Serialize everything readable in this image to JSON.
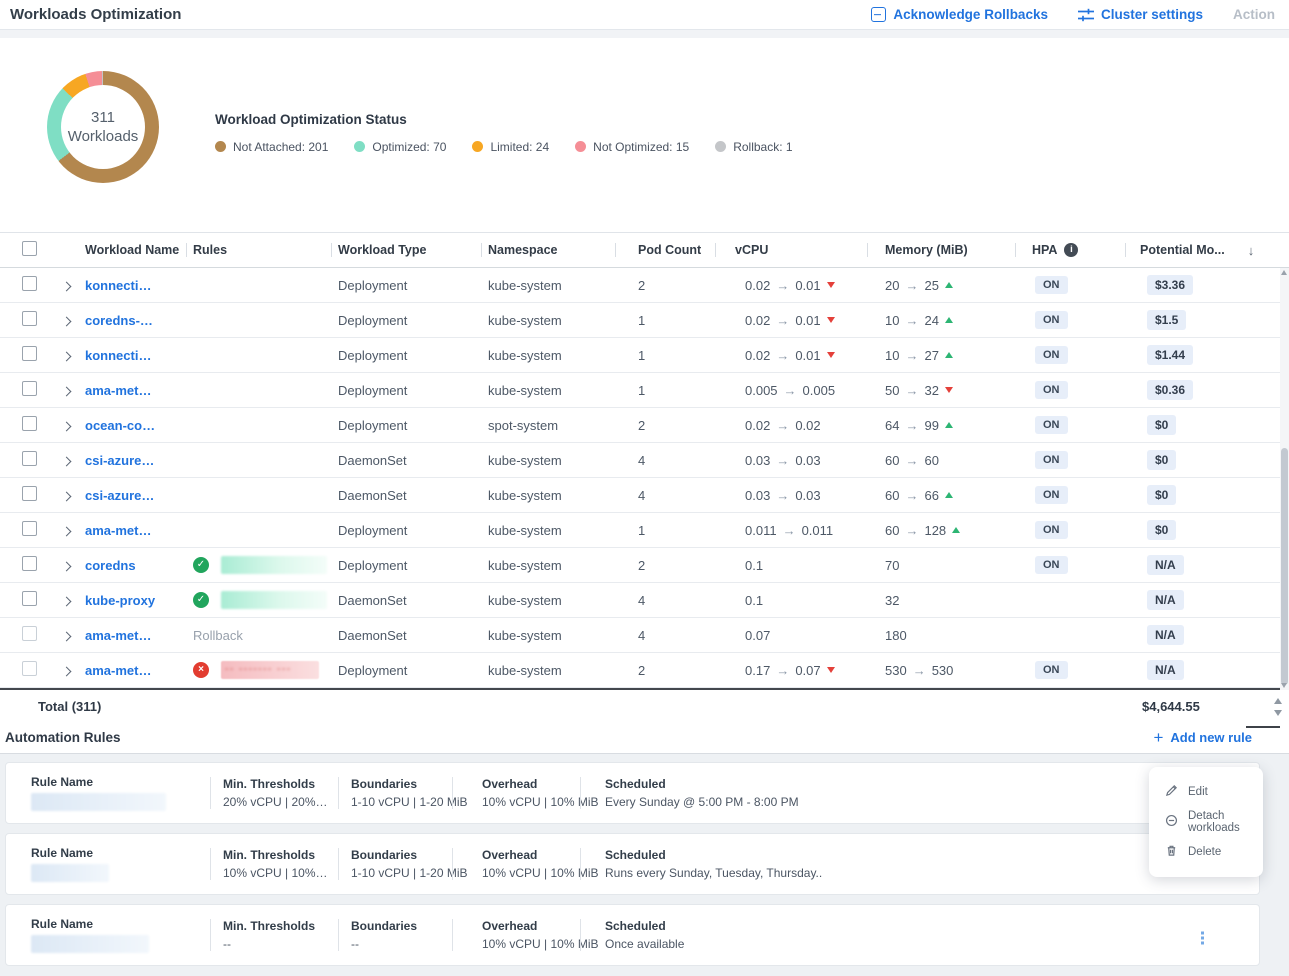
{
  "header": {
    "title": "Workloads Optimization",
    "actions": [
      {
        "label": "Acknowledge Rollbacks",
        "icon": "acknowledge-icon",
        "enabled": true
      },
      {
        "label": "Cluster settings",
        "icon": "sliders-icon",
        "enabled": true
      },
      {
        "label": "Action",
        "icon": "none",
        "enabled": false
      }
    ]
  },
  "status_card": {
    "title": "Workload Optimization Status",
    "center_value": "311",
    "center_label": "Workloads",
    "chart_data": {
      "type": "pie",
      "title": "Workload Optimization Status",
      "total": 311,
      "segments": [
        {
          "label": "Not Attached",
          "value": 201,
          "color": "#b3874e"
        },
        {
          "label": "Optimized",
          "value": 70,
          "color": "#7fdec4"
        },
        {
          "label": "Limited",
          "value": 24,
          "color": "#f7a723"
        },
        {
          "label": "Not Optimized",
          "value": 15,
          "color": "#f58e96"
        },
        {
          "label": "Rollback",
          "value": 1,
          "color": "#c4c6c9"
        }
      ]
    }
  },
  "table": {
    "columns": [
      "Workload Name",
      "Rules",
      "Workload Type",
      "Namespace",
      "Pod Count",
      "vCPU",
      "Memory (MiB)",
      "HPA",
      "Potential Mo..."
    ],
    "sort_column": "Potential Mo...",
    "rows": [
      {
        "name": "konnecti…",
        "rule": {
          "kind": "none"
        },
        "type": "Deployment",
        "namespace": "kube-system",
        "pods": "2",
        "vcpu": {
          "from": "0.02",
          "to": "0.01",
          "trend": "down"
        },
        "memory": {
          "from": "20",
          "to": "25",
          "trend": "up"
        },
        "hpa": "ON",
        "potential": "$3.36",
        "muted": false
      },
      {
        "name": "coredns-…",
        "rule": {
          "kind": "none"
        },
        "type": "Deployment",
        "namespace": "kube-system",
        "pods": "1",
        "vcpu": {
          "from": "0.02",
          "to": "0.01",
          "trend": "down"
        },
        "memory": {
          "from": "10",
          "to": "24",
          "trend": "up"
        },
        "hpa": "ON",
        "potential": "$1.5",
        "muted": false
      },
      {
        "name": "konnecti…",
        "rule": {
          "kind": "none"
        },
        "type": "Deployment",
        "namespace": "kube-system",
        "pods": "1",
        "vcpu": {
          "from": "0.02",
          "to": "0.01",
          "trend": "down"
        },
        "memory": {
          "from": "10",
          "to": "27",
          "trend": "up"
        },
        "hpa": "ON",
        "potential": "$1.44",
        "muted": false
      },
      {
        "name": "ama-met…",
        "rule": {
          "kind": "none"
        },
        "type": "Deployment",
        "namespace": "kube-system",
        "pods": "1",
        "vcpu": {
          "from": "0.005",
          "to": "0.005",
          "trend": null
        },
        "memory": {
          "from": "50",
          "to": "32",
          "trend": "down"
        },
        "hpa": "ON",
        "potential": "$0.36",
        "muted": false
      },
      {
        "name": "ocean-co…",
        "rule": {
          "kind": "none"
        },
        "type": "Deployment",
        "namespace": "spot-system",
        "pods": "2",
        "vcpu": {
          "from": "0.02",
          "to": "0.02",
          "trend": null
        },
        "memory": {
          "from": "64",
          "to": "99",
          "trend": "up"
        },
        "hpa": "ON",
        "potential": "$0",
        "muted": false
      },
      {
        "name": "csi-azure…",
        "rule": {
          "kind": "none"
        },
        "type": "DaemonSet",
        "namespace": "kube-system",
        "pods": "4",
        "vcpu": {
          "from": "0.03",
          "to": "0.03",
          "trend": null
        },
        "memory": {
          "from": "60",
          "to": "60",
          "trend": null
        },
        "hpa": "ON",
        "potential": "$0",
        "muted": false
      },
      {
        "name": "csi-azure…",
        "rule": {
          "kind": "none"
        },
        "type": "DaemonSet",
        "namespace": "kube-system",
        "pods": "4",
        "vcpu": {
          "from": "0.03",
          "to": "0.03",
          "trend": null
        },
        "memory": {
          "from": "60",
          "to": "66",
          "trend": "up"
        },
        "hpa": "ON",
        "potential": "$0",
        "muted": false
      },
      {
        "name": "ama-met…",
        "rule": {
          "kind": "none"
        },
        "type": "Deployment",
        "namespace": "kube-system",
        "pods": "1",
        "vcpu": {
          "from": "0.011",
          "to": "0.011",
          "trend": null
        },
        "memory": {
          "from": "60",
          "to": "128",
          "trend": "up"
        },
        "hpa": "ON",
        "potential": "$0",
        "muted": false
      },
      {
        "name": "coredns",
        "rule": {
          "kind": "ok"
        },
        "type": "Deployment",
        "namespace": "kube-system",
        "pods": "2",
        "vcpu": {
          "from": "0.1",
          "to": null,
          "trend": null
        },
        "memory": {
          "from": "70",
          "to": null,
          "trend": null
        },
        "hpa": "ON",
        "potential": "N/A",
        "muted": false
      },
      {
        "name": "kube-proxy",
        "rule": {
          "kind": "ok"
        },
        "type": "DaemonSet",
        "namespace": "kube-system",
        "pods": "4",
        "vcpu": {
          "from": "0.1",
          "to": null,
          "trend": null
        },
        "memory": {
          "from": "32",
          "to": null,
          "trend": null
        },
        "hpa": "",
        "potential": "N/A",
        "muted": false
      },
      {
        "name": "ama-met…",
        "rule": {
          "kind": "text",
          "text": "Rollback"
        },
        "type": "DaemonSet",
        "namespace": "kube-system",
        "pods": "4",
        "vcpu": {
          "from": "0.07",
          "to": null,
          "trend": null
        },
        "memory": {
          "from": "180",
          "to": null,
          "trend": null
        },
        "hpa": "",
        "potential": "N/A",
        "muted": true
      },
      {
        "name": "ama-met…",
        "rule": {
          "kind": "error"
        },
        "type": "Deployment",
        "namespace": "kube-system",
        "pods": "2",
        "vcpu": {
          "from": "0.17",
          "to": "0.07",
          "trend": "down"
        },
        "memory": {
          "from": "530",
          "to": "530",
          "trend": null
        },
        "hpa": "ON",
        "potential": "N/A",
        "muted": true
      }
    ],
    "total_label": "Total (311)",
    "total_value": "$4,644.55"
  },
  "rules_section": {
    "heading": "Automation Rules",
    "add_rule_label": "Add new rule",
    "column_labels": {
      "name": "Rule Name",
      "min": "Min. Thresholds",
      "bound": "Boundaries",
      "over": "Overhead",
      "sched": "Scheduled"
    },
    "rules": [
      {
        "min": "20% vCPU | 20%…",
        "bound": "1-10 vCPU | 1-20 MiB",
        "over": "10% vCPU | 10% MiB",
        "sched": "Every Sunday @ 5:00 PM - 8:00 PM"
      },
      {
        "min": "10% vCPU | 10%…",
        "bound": "1-10 vCPU | 1-20 MiB",
        "over": "10% vCPU | 10% MiB",
        "sched": "Runs every Sunday, Tuesday, Thursday.."
      },
      {
        "min": "--",
        "bound": "--",
        "over": "10% vCPU | 10% MiB",
        "sched": "Once available"
      }
    ],
    "context_menu": {
      "items": [
        {
          "label": "Edit",
          "icon": "pencil-icon"
        },
        {
          "label": "Detach workloads",
          "icon": "detach-icon"
        },
        {
          "label": "Delete",
          "icon": "trash-icon"
        }
      ]
    }
  },
  "colors": {
    "accent_blue": "#2173de",
    "badge_bg": "#e7eef9",
    "trend_up": "#2db573",
    "trend_down": "#e4403a"
  }
}
